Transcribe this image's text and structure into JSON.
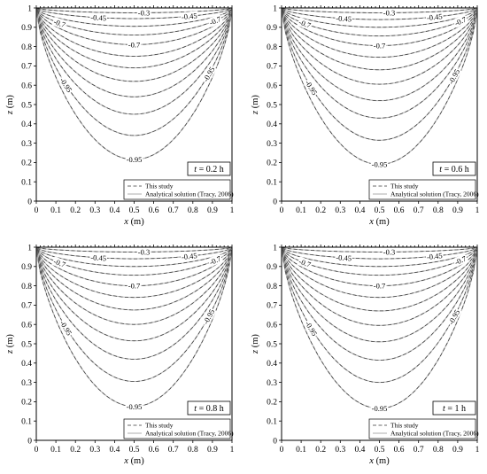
{
  "chart_data": [
    {
      "type": "contour",
      "time_label": "t = 0.2 h",
      "xlabel": "x (m)",
      "ylabel": "z (m)",
      "xlim": [
        0,
        1
      ],
      "ylim": [
        0,
        1
      ],
      "x_ticks": [
        "0",
        "0.1",
        "0.2",
        "0.3",
        "0.4",
        "0.5",
        "0.6",
        "0.7",
        "0.8",
        "0.9",
        "1"
      ],
      "y_ticks": [
        "0",
        "0.1",
        "0.2",
        "0.3",
        "0.4",
        "0.5",
        "0.6",
        "0.7",
        "0.8",
        "0.9",
        "1"
      ],
      "contour_bottoms_z": [
        0.215,
        0.34,
        0.45,
        0.54,
        0.62,
        0.69,
        0.75,
        0.81,
        0.86,
        0.905,
        0.945,
        0.975
      ],
      "contour_labels": [
        "-0.3",
        "-0.45",
        "-0.45",
        "-0.7",
        "-0.7",
        "-0.7",
        "-0.95",
        "-0.95",
        "-0.95"
      ],
      "legend": [
        "This study",
        "Analytical solution (Tracy, 2006)"
      ]
    },
    {
      "type": "contour",
      "time_label": "t = 0.6 h",
      "xlabel": "x (m)",
      "ylabel": "z (m)",
      "xlim": [
        0,
        1
      ],
      "ylim": [
        0,
        1
      ],
      "x_ticks": [
        "0",
        "0.1",
        "0.2",
        "0.3",
        "0.4",
        "0.5",
        "0.6",
        "0.7",
        "0.8",
        "0.9",
        "1"
      ],
      "y_ticks": [
        "0",
        "0.1",
        "0.2",
        "0.3",
        "0.4",
        "0.5",
        "0.6",
        "0.7",
        "0.8",
        "0.9",
        "1"
      ],
      "contour_bottoms_z": [
        0.19,
        0.315,
        0.43,
        0.52,
        0.605,
        0.68,
        0.745,
        0.805,
        0.855,
        0.9,
        0.94,
        0.975
      ],
      "contour_labels": [
        "-0.3",
        "-0.45",
        "-0.45",
        "-0.7",
        "-0.7",
        "-0.7",
        "-0.95",
        "-0.95",
        "-0.95"
      ],
      "legend": [
        "This study",
        "Analytical solution (Tracy, 2006)"
      ]
    },
    {
      "type": "contour",
      "time_label": "t = 0.8 h",
      "xlabel": "x (m)",
      "ylabel": "z (m)",
      "xlim": [
        0,
        1
      ],
      "ylim": [
        0,
        1
      ],
      "x_ticks": [
        "0",
        "0.1",
        "0.2",
        "0.3",
        "0.4",
        "0.5",
        "0.6",
        "0.7",
        "0.8",
        "0.9",
        "1"
      ],
      "y_ticks": [
        "0",
        "0.1",
        "0.2",
        "0.3",
        "0.4",
        "0.5",
        "0.6",
        "0.7",
        "0.8",
        "0.9",
        "1"
      ],
      "contour_bottoms_z": [
        0.175,
        0.305,
        0.42,
        0.515,
        0.6,
        0.675,
        0.74,
        0.8,
        0.855,
        0.9,
        0.94,
        0.975
      ],
      "contour_labels": [
        "-0.3",
        "-0.45",
        "-0.45",
        "-0.7",
        "-0.7",
        "-0.7",
        "-0.95",
        "-0.95",
        "-0.95"
      ],
      "legend": [
        "This study",
        "Analytical solution (Tracy, 2006)"
      ]
    },
    {
      "type": "contour",
      "time_label": "t = 1 h",
      "xlabel": "x (m)",
      "ylabel": "z (m)",
      "xlim": [
        0,
        1
      ],
      "ylim": [
        0,
        1
      ],
      "x_ticks": [
        "0",
        "0.1",
        "0.2",
        "0.3",
        "0.4",
        "0.5",
        "0.6",
        "0.7",
        "0.8",
        "0.9",
        "1"
      ],
      "y_ticks": [
        "0",
        "0.1",
        "0.2",
        "0.3",
        "0.4",
        "0.5",
        "0.6",
        "0.7",
        "0.8",
        "0.9",
        "1"
      ],
      "contour_bottoms_z": [
        0.165,
        0.3,
        0.415,
        0.51,
        0.595,
        0.67,
        0.74,
        0.8,
        0.855,
        0.9,
        0.94,
        0.975
      ],
      "contour_labels": [
        "-0.3",
        "-0.45",
        "-0.45",
        "-0.7",
        "-0.7",
        "-0.7",
        "-0.95",
        "-0.95",
        "-0.95"
      ],
      "legend": [
        "This study",
        "Analytical solution (Tracy, 2006)"
      ]
    }
  ]
}
